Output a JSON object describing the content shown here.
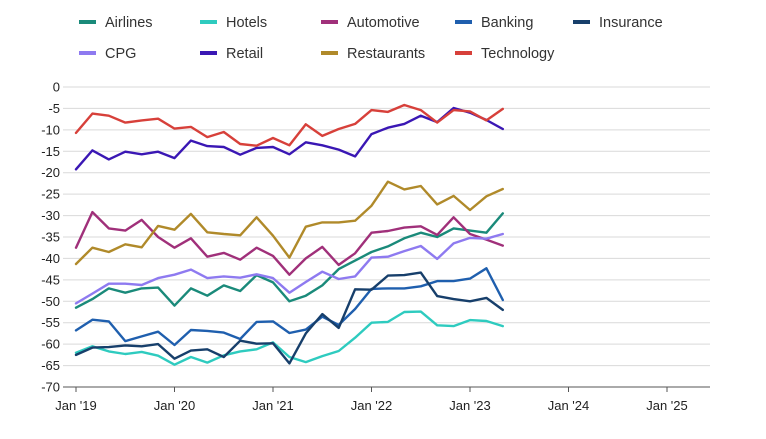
{
  "chart_data": {
    "type": "line",
    "title": "",
    "xlabel": "",
    "ylabel": "",
    "ylim": [
      -70,
      0
    ],
    "yticks": [
      0,
      -5,
      -10,
      -15,
      -20,
      -25,
      -30,
      -35,
      -40,
      -45,
      -50,
      -55,
      -60,
      -65,
      -70
    ],
    "xticks": [
      "Jan '19",
      "Jan '20",
      "Jan '21",
      "Jan '22",
      "Jan '23",
      "Jan '24",
      "Jan '25"
    ],
    "x_start": "2019-01",
    "x_step_months": 2,
    "grid": true,
    "legend_position": "top",
    "series": [
      {
        "name": "Airlines",
        "color": "#1a8a7a",
        "values": [
          -51.5,
          -49.5,
          -47.0,
          -48.0,
          -47.0,
          -46.8,
          -51.0,
          -47.0,
          -48.7,
          -46.3,
          -47.6,
          -43.9,
          -45.6,
          -50.0,
          -48.7,
          -46.3,
          -42.5,
          -40.5,
          -38.5,
          -37.2,
          -35.3,
          -34.0,
          -35.0,
          -33.0,
          -33.5,
          -34.0,
          -29.5
        ]
      },
      {
        "name": "Hotels",
        "color": "#2ecbbf",
        "values": [
          -62.0,
          -60.5,
          -61.7,
          -62.3,
          -61.8,
          -62.7,
          -64.8,
          -63.0,
          -64.3,
          -62.6,
          -61.7,
          -61.2,
          -59.6,
          -63.0,
          -64.2,
          -62.8,
          -61.6,
          -58.5,
          -55.0,
          -54.8,
          -52.5,
          -52.4,
          -55.6,
          -55.8,
          -54.4,
          -54.6,
          -55.8
        ]
      },
      {
        "name": "Automotive",
        "color": "#a0307a",
        "values": [
          -37.5,
          -29.2,
          -33.0,
          -33.5,
          -31.0,
          -35.0,
          -37.5,
          -35.3,
          -39.6,
          -38.7,
          -40.3,
          -37.5,
          -39.4,
          -43.8,
          -40.0,
          -37.3,
          -41.5,
          -38.8,
          -34.0,
          -33.6,
          -32.8,
          -32.5,
          -34.5,
          -30.4,
          -34.3,
          -35.6,
          -37.0
        ]
      },
      {
        "name": "Banking",
        "color": "#1f5fae",
        "values": [
          -56.8,
          -54.3,
          -54.7,
          -59.3,
          -58.2,
          -57.1,
          -60.2,
          -56.7,
          -56.9,
          -57.3,
          -58.8,
          -54.8,
          -54.7,
          -57.4,
          -56.6,
          -53.6,
          -55.5,
          -51.8,
          -47.1,
          -47.0,
          -47.0,
          -46.5,
          -45.3,
          -45.3,
          -44.7,
          -42.3,
          -49.7
        ]
      },
      {
        "name": "Insurance",
        "color": "#173f6b",
        "values": [
          -62.5,
          -60.8,
          -60.7,
          -60.3,
          -60.5,
          -60.0,
          -63.4,
          -61.5,
          -61.2,
          -63.0,
          -59.2,
          -59.9,
          -59.8,
          -64.5,
          -57.5,
          -53.0,
          -56.2,
          -47.2,
          -47.3,
          -44.0,
          -43.9,
          -43.3,
          -48.8,
          -49.5,
          -50.0,
          -49.2,
          -52.0
        ]
      },
      {
        "name": "CPG",
        "color": "#8e7af0",
        "values": [
          -50.5,
          -48.2,
          -45.9,
          -45.9,
          -46.2,
          -44.6,
          -43.8,
          -42.6,
          -44.6,
          -44.2,
          -44.5,
          -43.7,
          -44.6,
          -48.0,
          -45.5,
          -43.1,
          -44.8,
          -44.2,
          -39.8,
          -39.6,
          -38.3,
          -37.1,
          -40.1,
          -36.5,
          -35.2,
          -35.4,
          -34.3
        ]
      },
      {
        "name": "Retail",
        "color": "#3a17b4",
        "values": [
          -19.2,
          -14.8,
          -16.9,
          -15.1,
          -15.7,
          -15.1,
          -16.6,
          -12.5,
          -13.8,
          -14.0,
          -15.8,
          -14.2,
          -14.0,
          -15.7,
          -12.9,
          -13.6,
          -14.6,
          -16.2,
          -11.0,
          -9.5,
          -8.6,
          -6.7,
          -8.2,
          -4.9,
          -6.0,
          -7.7,
          -9.8
        ]
      },
      {
        "name": "Restaurants",
        "color": "#b08a2a",
        "values": [
          -41.3,
          -37.5,
          -38.5,
          -36.7,
          -37.4,
          -32.4,
          -33.3,
          -29.6,
          -33.9,
          -34.3,
          -34.6,
          -30.4,
          -34.7,
          -39.8,
          -32.6,
          -31.6,
          -31.6,
          -31.2,
          -27.7,
          -22.1,
          -23.9,
          -23.1,
          -27.4,
          -25.4,
          -28.7,
          -25.5,
          -23.8
        ]
      },
      {
        "name": "Technology",
        "color": "#d7403a",
        "values": [
          -10.7,
          -6.2,
          -6.7,
          -8.3,
          -7.8,
          -7.4,
          -9.7,
          -9.3,
          -11.7,
          -10.5,
          -13.3,
          -13.7,
          -11.9,
          -13.6,
          -8.7,
          -11.4,
          -9.8,
          -8.6,
          -5.4,
          -5.8,
          -4.2,
          -5.4,
          -8.3,
          -5.4,
          -5.7,
          -7.8,
          -5.1
        ]
      }
    ]
  }
}
